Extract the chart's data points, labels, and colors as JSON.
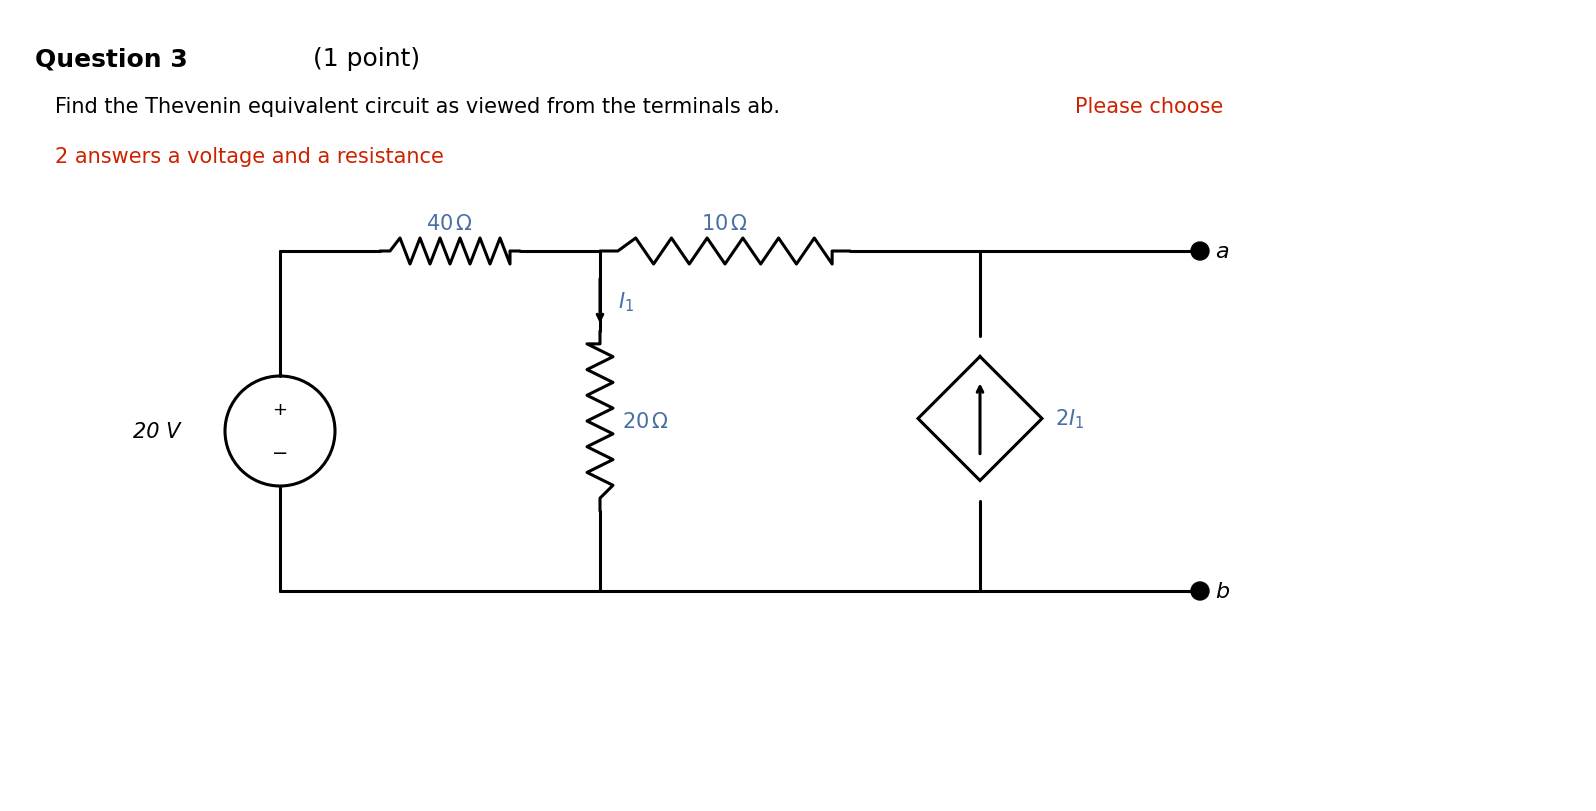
{
  "title_bold": "Question 3",
  "title_normal": " (1 point)",
  "line1_black": "Find the Thevenin equivalent circuit as viewed from the terminals ab. ",
  "line1_red": "Please choose",
  "line2_red": "2 answers a voltage and a resistance",
  "bg_color": "#ffffff",
  "circuit_color": "#000000",
  "label_color": "#4a6fa5",
  "text_black": "#000000",
  "text_red": "#cc2200",
  "font_size_title": 18,
  "font_size_body": 15,
  "font_size_labels": 14
}
